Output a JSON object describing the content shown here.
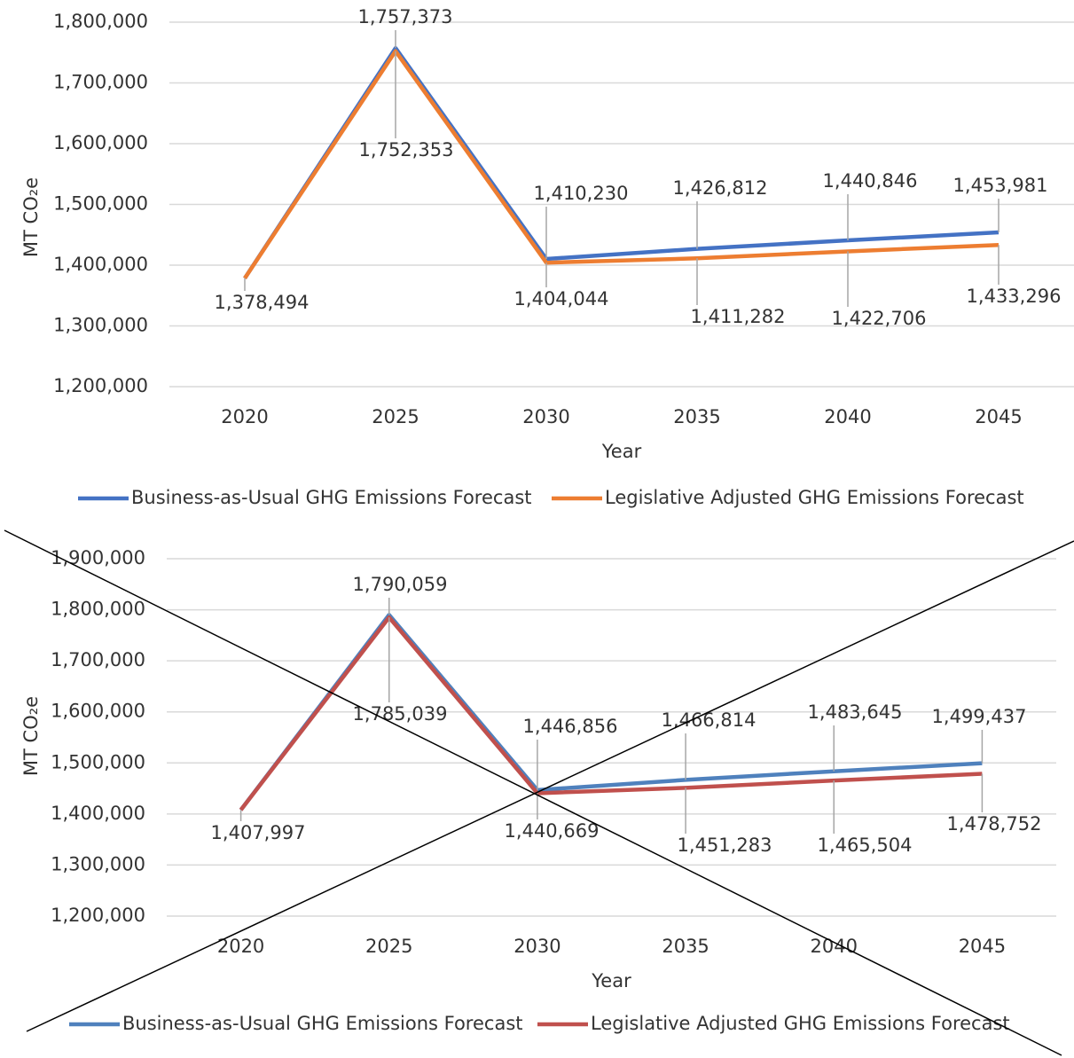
{
  "chart_data": [
    {
      "type": "line",
      "y_label": "MT CO₂e",
      "x_label": "Year",
      "categories": [
        "2020",
        "2025",
        "2030",
        "2035",
        "2040",
        "2045"
      ],
      "ylim": [
        1200000,
        1800000
      ],
      "yticks": [
        {
          "value": 1200000,
          "label": "1,200,000"
        },
        {
          "value": 1300000,
          "label": "1,300,000"
        },
        {
          "value": 1400000,
          "label": "1,400,000"
        },
        {
          "value": 1500000,
          "label": "1,500,000"
        },
        {
          "value": 1600000,
          "label": "1,600,000"
        },
        {
          "value": 1700000,
          "label": "1,700,000"
        },
        {
          "value": 1800000,
          "label": "1,800,000"
        }
      ],
      "grid": true,
      "legend": "bottom",
      "series": [
        {
          "name": "Business-as-Usual GHG Emissions Forecast",
          "color": "#4472c4",
          "values": [
            1378494,
            1757373,
            1410230,
            1426812,
            1440846,
            1453981
          ],
          "value_labels": [
            null,
            "1,757,373",
            "1,410,230",
            "1,426,812",
            "1,440,846",
            "1,453,981"
          ]
        },
        {
          "name": "Legislative Adjusted GHG Emissions Forecast",
          "color": "#ed7d31",
          "values": [
            1378494,
            1752353,
            1404044,
            1411282,
            1422706,
            1433296
          ],
          "value_labels": [
            "1,378,494",
            "1,752,353",
            "1,404,044",
            "1,411,282",
            "1,422,706",
            "1,433,296"
          ]
        }
      ]
    },
    {
      "type": "line",
      "y_label": "MT CO₂e",
      "x_label": "Year",
      "categories": [
        "2020",
        "2025",
        "2030",
        "2035",
        "2040",
        "2045"
      ],
      "ylim": [
        1200000,
        1900000
      ],
      "yticks": [
        {
          "value": 1200000,
          "label": "1,200,000"
        },
        {
          "value": 1300000,
          "label": "1,300,000"
        },
        {
          "value": 1400000,
          "label": "1,400,000"
        },
        {
          "value": 1500000,
          "label": "1,500,000"
        },
        {
          "value": 1600000,
          "label": "1,600,000"
        },
        {
          "value": 1700000,
          "label": "1,700,000"
        },
        {
          "value": 1800000,
          "label": "1,800,000"
        },
        {
          "value": 1900000,
          "label": "1,900,000"
        }
      ],
      "grid": true,
      "legend": "bottom",
      "series": [
        {
          "name": "Business-as-Usual GHG Emissions Forecast",
          "color": "#4f81bd",
          "values": [
            1407997,
            1790059,
            1446856,
            1466814,
            1483645,
            1499437
          ],
          "value_labels": [
            null,
            "1,790,059",
            "1,446,856",
            "1,466,814",
            "1,483,645",
            "1,499,437"
          ]
        },
        {
          "name": "Legislative Adjusted GHG Emissions Forecast",
          "color": "#c0504d",
          "values": [
            1407997,
            1785039,
            1440669,
            1451283,
            1465504,
            1478752
          ],
          "value_labels": [
            "1,407,997",
            "1,785,039",
            "1,440,669",
            "1,451,283",
            "1,465,504",
            "1,478,752"
          ]
        }
      ]
    }
  ]
}
